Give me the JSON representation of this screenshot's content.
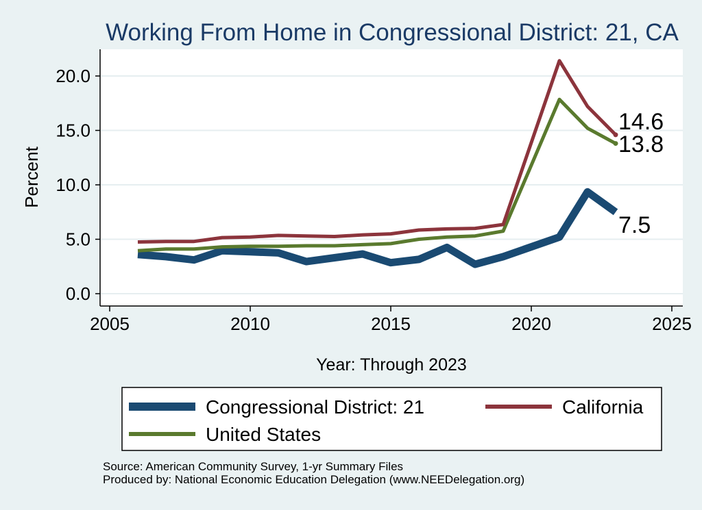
{
  "chart_data": {
    "type": "line",
    "title": "Working From Home in Congressional District: 21, CA",
    "xlabel": "Year: Through 2023",
    "ylabel": "Percent",
    "xlim": [
      2005,
      2025
    ],
    "ylim": [
      0,
      21.5
    ],
    "x_ticks": [
      2005,
      2010,
      2015,
      2020,
      2025
    ],
    "x_tick_labels": [
      "2005",
      "2010",
      "2015",
      "2020",
      "2025"
    ],
    "y_ticks": [
      0,
      5,
      10,
      15,
      20
    ],
    "y_tick_labels": [
      "0.0",
      "5.0",
      "10.0",
      "15.0",
      "20.0"
    ],
    "grid": true,
    "legend_position": "bottom",
    "x": [
      2006,
      2007,
      2008,
      2009,
      2010,
      2011,
      2012,
      2013,
      2014,
      2015,
      2016,
      2017,
      2018,
      2019,
      2021,
      2022,
      2023
    ],
    "series": [
      {
        "name": "Congressional District: 21",
        "color": "#1a4a72",
        "values": [
          3.6,
          3.4,
          3.1,
          3.95,
          3.85,
          3.75,
          2.95,
          3.3,
          3.65,
          2.85,
          3.15,
          4.25,
          2.7,
          3.4,
          5.2,
          9.35,
          7.5
        ],
        "end_label": "7.5"
      },
      {
        "name": "California",
        "color": "#8c343c",
        "values": [
          4.75,
          4.8,
          4.8,
          5.15,
          5.2,
          5.35,
          5.3,
          5.25,
          5.4,
          5.5,
          5.85,
          5.95,
          6.0,
          6.35,
          21.4,
          17.2,
          14.6
        ],
        "end_label": "14.6"
      },
      {
        "name": "United States",
        "color": "#5a7a2e",
        "values": [
          3.95,
          4.1,
          4.1,
          4.3,
          4.35,
          4.35,
          4.4,
          4.4,
          4.5,
          4.6,
          5.0,
          5.2,
          5.3,
          5.75,
          17.85,
          15.2,
          13.8
        ],
        "end_label": "13.8"
      }
    ]
  },
  "footer": {
    "source": "Source: American Community Survey, 1-yr Summary Files",
    "produced_by": "Produced by: National Economic Education Delegation (www.NEEDelegation.org)"
  }
}
